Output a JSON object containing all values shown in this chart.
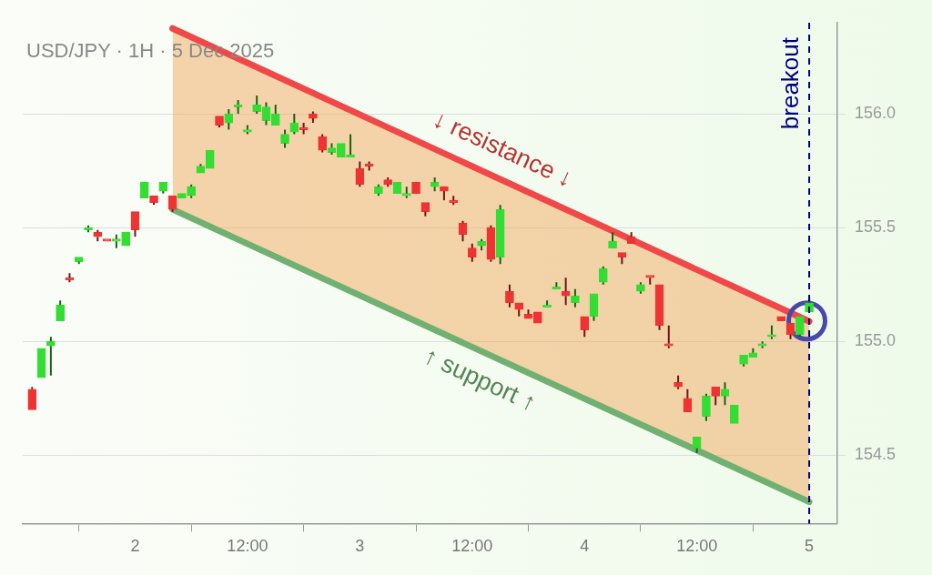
{
  "chart_data": {
    "type": "candlestick",
    "title": "USD/JPY · 1H · 5 Dec 2025",
    "x": [
      "2025-12-01T13:00",
      "2025-12-01T14:00",
      "2025-12-01T15:00",
      "2025-12-01T16:00",
      "2025-12-01T17:00",
      "2025-12-01T18:00",
      "2025-12-01T19:00",
      "2025-12-01T20:00",
      "2025-12-01T21:00",
      "2025-12-01T22:00",
      "2025-12-01T23:00",
      "2025-12-02T00:00",
      "2025-12-02T01:00",
      "2025-12-02T02:00",
      "2025-12-02T03:00",
      "2025-12-02T04:00",
      "2025-12-02T05:00",
      "2025-12-02T06:00",
      "2025-12-02T07:00",
      "2025-12-02T08:00",
      "2025-12-02T09:00",
      "2025-12-02T10:00",
      "2025-12-02T11:00",
      "2025-12-02T12:00",
      "2025-12-02T13:00",
      "2025-12-02T14:00",
      "2025-12-02T15:00",
      "2025-12-02T16:00",
      "2025-12-02T17:00",
      "2025-12-02T18:00",
      "2025-12-02T19:00",
      "2025-12-02T20:00",
      "2025-12-02T21:00",
      "2025-12-02T22:00",
      "2025-12-02T23:00",
      "2025-12-03T00:00",
      "2025-12-03T01:00",
      "2025-12-03T02:00",
      "2025-12-03T03:00",
      "2025-12-03T04:00",
      "2025-12-03T05:00",
      "2025-12-03T06:00",
      "2025-12-03T07:00",
      "2025-12-03T08:00",
      "2025-12-03T09:00",
      "2025-12-03T10:00",
      "2025-12-03T11:00",
      "2025-12-03T12:00",
      "2025-12-03T13:00",
      "2025-12-03T14:00",
      "2025-12-03T15:00",
      "2025-12-03T16:00",
      "2025-12-03T17:00",
      "2025-12-03T18:00",
      "2025-12-03T19:00",
      "2025-12-03T20:00",
      "2025-12-03T21:00",
      "2025-12-03T22:00",
      "2025-12-03T23:00",
      "2025-12-04T00:00",
      "2025-12-04T01:00",
      "2025-12-04T02:00",
      "2025-12-04T03:00",
      "2025-12-04T04:00",
      "2025-12-04T05:00",
      "2025-12-04T06:00",
      "2025-12-04T07:00",
      "2025-12-04T08:00",
      "2025-12-04T09:00",
      "2025-12-04T10:00",
      "2025-12-04T11:00",
      "2025-12-04T12:00",
      "2025-12-04T13:00",
      "2025-12-04T14:00",
      "2025-12-04T15:00",
      "2025-12-04T16:00",
      "2025-12-04T17:00",
      "2025-12-04T18:00",
      "2025-12-04T19:00",
      "2025-12-04T20:00",
      "2025-12-04T21:00",
      "2025-12-04T22:00",
      "2025-12-04T23:00",
      "2025-12-05T00:00"
    ],
    "ohlc": [
      [
        154.79,
        154.8,
        154.7,
        154.7
      ],
      [
        154.84,
        154.97,
        154.84,
        154.97
      ],
      [
        154.98,
        155.02,
        154.85,
        155.0
      ],
      [
        155.09,
        155.18,
        155.09,
        155.16
      ],
      [
        155.28,
        155.3,
        155.26,
        155.27
      ],
      [
        155.35,
        155.37,
        155.34,
        155.37
      ],
      [
        155.49,
        155.51,
        155.48,
        155.5
      ],
      [
        155.48,
        155.49,
        155.44,
        155.46
      ],
      [
        155.45,
        155.45,
        155.44,
        155.44
      ],
      [
        155.44,
        155.47,
        155.41,
        155.45
      ],
      [
        155.42,
        155.48,
        155.42,
        155.48
      ],
      [
        155.57,
        155.57,
        155.46,
        155.49
      ],
      [
        155.63,
        155.7,
        155.63,
        155.7
      ],
      [
        155.64,
        155.64,
        155.6,
        155.61
      ],
      [
        155.66,
        155.7,
        155.65,
        155.7
      ],
      [
        155.64,
        155.64,
        155.57,
        155.58
      ],
      [
        155.63,
        155.65,
        155.63,
        155.65
      ],
      [
        155.64,
        155.69,
        155.63,
        155.68
      ],
      [
        155.74,
        155.78,
        155.74,
        155.77
      ],
      [
        155.76,
        155.84,
        155.76,
        155.84
      ],
      [
        155.99,
        155.99,
        155.94,
        155.95
      ],
      [
        155.96,
        156.02,
        155.93,
        156.0
      ],
      [
        156.03,
        156.06,
        156.0,
        156.04
      ],
      [
        155.92,
        155.95,
        155.91,
        155.93
      ],
      [
        156.01,
        156.08,
        156.0,
        156.04
      ],
      [
        155.97,
        156.05,
        155.95,
        156.03
      ],
      [
        155.95,
        156.04,
        155.95,
        156.0
      ],
      [
        155.87,
        155.93,
        155.85,
        155.91
      ],
      [
        155.92,
        156.0,
        155.91,
        155.96
      ],
      [
        155.94,
        155.96,
        155.91,
        155.93
      ],
      [
        156.0,
        156.01,
        155.96,
        155.98
      ],
      [
        155.9,
        155.91,
        155.83,
        155.84
      ],
      [
        155.83,
        155.87,
        155.82,
        155.85
      ],
      [
        155.81,
        155.87,
        155.81,
        155.87
      ],
      [
        155.81,
        155.91,
        155.81,
        155.82
      ],
      [
        155.76,
        155.79,
        155.68,
        155.69
      ],
      [
        155.78,
        155.79,
        155.75,
        155.77
      ],
      [
        155.65,
        155.69,
        155.64,
        155.68
      ],
      [
        155.71,
        155.72,
        155.68,
        155.69
      ],
      [
        155.65,
        155.7,
        155.65,
        155.7
      ],
      [
        155.64,
        155.68,
        155.63,
        155.65
      ],
      [
        155.7,
        155.7,
        155.65,
        155.65
      ],
      [
        155.61,
        155.61,
        155.55,
        155.57
      ],
      [
        155.68,
        155.72,
        155.66,
        155.7
      ],
      [
        155.68,
        155.68,
        155.62,
        155.66
      ],
      [
        155.62,
        155.64,
        155.6,
        155.61
      ],
      [
        155.52,
        155.53,
        155.44,
        155.47
      ],
      [
        155.41,
        155.43,
        155.35,
        155.37
      ],
      [
        155.42,
        155.45,
        155.4,
        155.44
      ],
      [
        155.5,
        155.51,
        155.35,
        155.36
      ],
      [
        155.37,
        155.6,
        155.34,
        155.58
      ],
      [
        155.22,
        155.25,
        155.15,
        155.17
      ],
      [
        155.17,
        155.17,
        155.11,
        155.14
      ],
      [
        155.12,
        155.14,
        155.1,
        155.1
      ],
      [
        155.13,
        155.13,
        155.08,
        155.08
      ],
      [
        155.15,
        155.18,
        155.15,
        155.16
      ],
      [
        155.23,
        155.26,
        155.23,
        155.24
      ],
      [
        155.22,
        155.28,
        155.16,
        155.2
      ],
      [
        155.17,
        155.23,
        155.15,
        155.2
      ],
      [
        155.11,
        155.11,
        155.02,
        155.05
      ],
      [
        155.11,
        155.21,
        155.09,
        155.21
      ],
      [
        155.26,
        155.33,
        155.25,
        155.32
      ],
      [
        155.41,
        155.48,
        155.41,
        155.44
      ],
      [
        155.39,
        155.39,
        155.34,
        155.37
      ],
      [
        155.46,
        155.48,
        155.43,
        155.43
      ],
      [
        155.22,
        155.26,
        155.21,
        155.25
      ],
      [
        155.29,
        155.29,
        155.25,
        155.28
      ],
      [
        155.25,
        155.25,
        155.05,
        155.07
      ],
      [
        154.99,
        155.07,
        154.97,
        154.98
      ],
      [
        154.82,
        154.85,
        154.79,
        154.8
      ],
      [
        154.75,
        154.79,
        154.69,
        154.69
      ],
      [
        154.53,
        154.58,
        154.51,
        154.58
      ],
      [
        154.67,
        154.77,
        154.65,
        154.76
      ],
      [
        154.8,
        154.8,
        154.72,
        154.76
      ],
      [
        154.76,
        154.82,
        154.72,
        154.79
      ],
      [
        154.64,
        154.72,
        154.64,
        154.72
      ],
      [
        154.9,
        154.94,
        154.89,
        154.94
      ],
      [
        154.93,
        154.97,
        154.93,
        154.95
      ],
      [
        154.98,
        155.0,
        154.97,
        154.99
      ],
      [
        155.02,
        155.07,
        155.01,
        155.03
      ],
      [
        155.11,
        155.11,
        155.09,
        155.09
      ],
      [
        155.08,
        155.08,
        155.01,
        155.03
      ],
      [
        155.03,
        155.11,
        155.02,
        155.11
      ],
      [
        155.13,
        155.19,
        155.13,
        155.17
      ]
    ],
    "colors": [
      "#ee3333",
      "#33dd33",
      "#33dd33",
      "#33dd33",
      "#ee3333",
      "#33dd33",
      "#33dd33",
      "#ee3333",
      "#ee3333",
      "#33dd33",
      "#33dd33",
      "#ee3333",
      "#33dd33",
      "#ee3333",
      "#33dd33",
      "#ee3333",
      "#33dd33",
      "#33dd33",
      "#33dd33",
      "#33dd33",
      "#ee3333",
      "#33dd33",
      "#33dd33",
      "#33dd33",
      "#33dd33",
      "#33dd33",
      "#33dd33",
      "#33dd33",
      "#33dd33",
      "#ee3333",
      "#ee3333",
      "#ee3333",
      "#33dd33",
      "#33dd33",
      "#33dd33",
      "#ee3333",
      "#ee3333",
      "#33dd33",
      "#ee3333",
      "#33dd33",
      "#33dd33",
      "#ee3333",
      "#ee3333",
      "#33dd33",
      "#ee3333",
      "#ee3333",
      "#ee3333",
      "#ee3333",
      "#33dd33",
      "#ee3333",
      "#33dd33",
      "#ee3333",
      "#ee3333",
      "#ee3333",
      "#ee3333",
      "#33dd33",
      "#33dd33",
      "#ee3333",
      "#33dd33",
      "#ee3333",
      "#33dd33",
      "#33dd33",
      "#33dd33",
      "#ee3333",
      "#ee3333",
      "#33dd33",
      "#ee3333",
      "#ee3333",
      "#ee3333",
      "#ee3333",
      "#ee3333",
      "#33dd33",
      "#33dd33",
      "#ee3333",
      "#33dd33",
      "#33dd33",
      "#33dd33",
      "#33dd33",
      "#33dd33",
      "#33dd33",
      "#ee3333",
      "#ee3333",
      "#33dd33",
      "#33dd33"
    ],
    "series": [
      {
        "type": "line",
        "color": "#f04848",
        "x": [
          "2025-12-02T04:00",
          "2025-12-05T00:00"
        ],
        "values": [
          156.375,
          155.088
        ],
        "lower": [
          155.58,
          154.295
        ],
        "upper": [
          156.375,
          155.088
        ]
      },
      {
        "type": "line",
        "color": "#70b070",
        "x": [
          "2025-12-02T04:00",
          "2025-12-05T00:00"
        ],
        "values": [
          155.58,
          154.295
        ]
      },
      {
        "type": "scatter",
        "color": "#4848a8",
        "marker": "circle",
        "x": [
          "2025-12-04T23:45"
        ],
        "values": [
          155.09
        ]
      }
    ],
    "annotations": [
      "↓ resistance ↓",
      "↑ support ↑"
    ],
    "ref_lines": [
      {
        "axis": "x",
        "value": "2025-12-05T00:00",
        "label": "breakout",
        "color": "#000080",
        "line_style": "dashed"
      }
    ],
    "xlim": [
      "2025-12-01T12:00",
      "2025-12-05T03:00"
    ],
    "xticks": [
      {
        "value": "2025-12-02T00:00",
        "label": "2"
      },
      {
        "value": "2025-12-02T12:00",
        "label": "12:00"
      },
      {
        "value": "2025-12-03T00:00",
        "label": "3"
      },
      {
        "value": "2025-12-03T12:00",
        "label": "12:00"
      },
      {
        "value": "2025-12-04T00:00",
        "label": "4"
      },
      {
        "value": "2025-12-04T12:00",
        "label": "12:00"
      },
      {
        "value": "2025-12-05T00:00",
        "label": "5"
      }
    ],
    "ylim": [
      154.2,
      156.4
    ],
    "yticks": [
      154.5,
      {
        "value": 155,
        "label": "155.0"
      },
      155.5,
      {
        "value": 156,
        "label": "156.0"
      }
    ],
    "grid": "y",
    "legend": false
  }
}
